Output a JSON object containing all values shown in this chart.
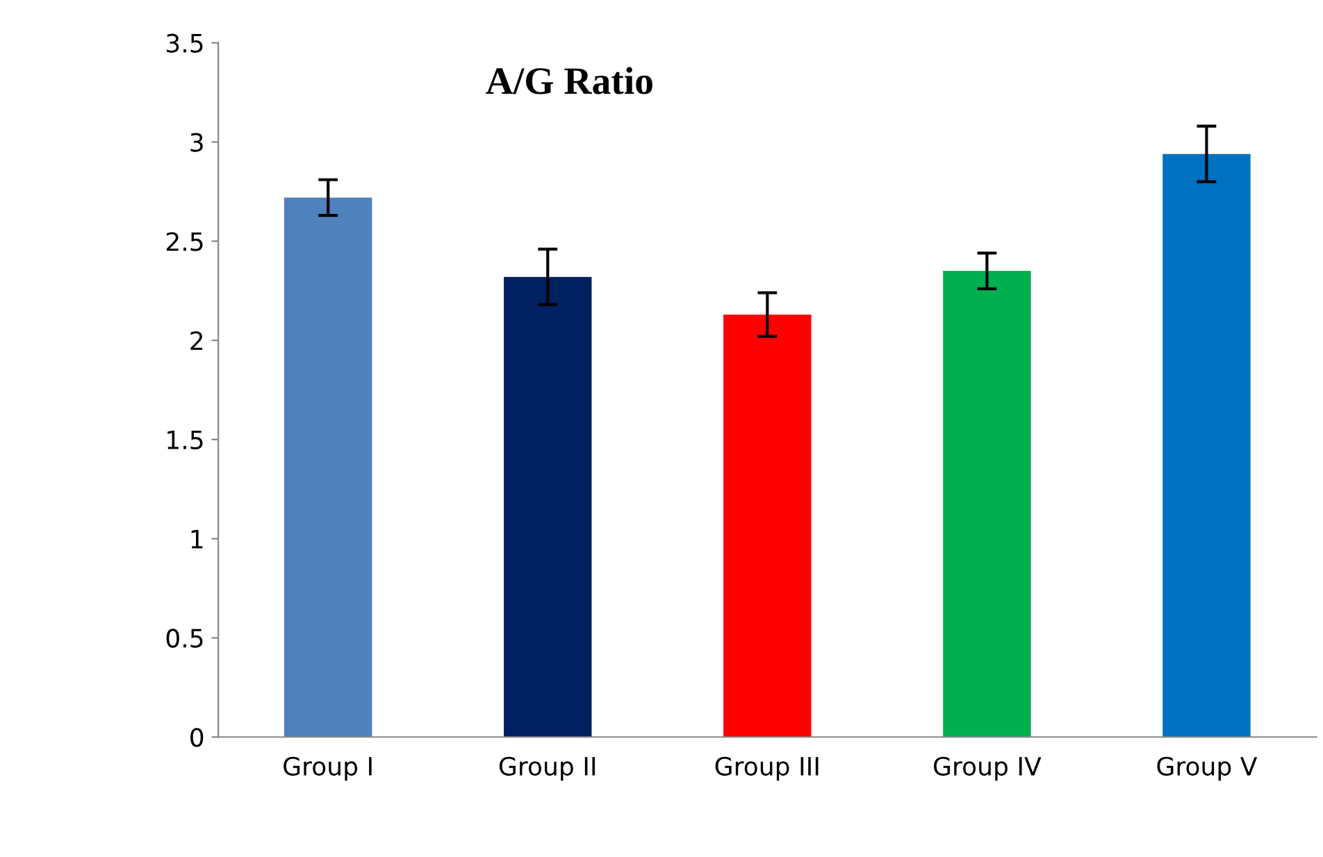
{
  "chart_data": {
    "type": "bar",
    "title": "A/G Ratio",
    "categories": [
      "Group I",
      "Group II",
      "Group III",
      "Group IV",
      "Group V"
    ],
    "values": [
      2.72,
      2.32,
      2.13,
      2.35,
      2.94
    ],
    "errors": [
      0.09,
      0.14,
      0.11,
      0.09,
      0.14
    ],
    "colors": [
      "#4f81bd",
      "#002060",
      "#ff0000",
      "#00b050",
      "#0070c0"
    ],
    "ylim": [
      0,
      3.5
    ],
    "yticks": [
      0,
      0.5,
      1,
      1.5,
      2,
      2.5,
      3,
      3.5
    ],
    "grid": false,
    "legend": false
  }
}
